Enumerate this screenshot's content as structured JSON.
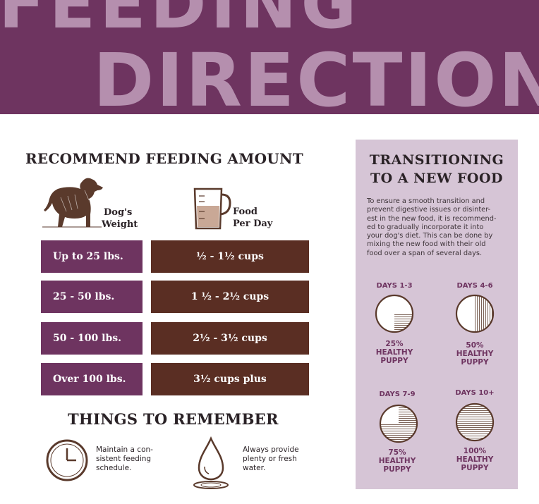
{
  "header": {
    "line1": "FEEDING",
    "line2": "DIRECTIONS"
  },
  "feeding": {
    "title": "RECOMMEND FEEDING AMOUNT",
    "weight_label_line1": "Dog's",
    "weight_label_line2": "Weight",
    "food_label_line1": "Food",
    "food_label_line2": "Per Day",
    "rows": [
      {
        "weight": "Up to 25 lbs.",
        "amount": "½ - 1½ cups"
      },
      {
        "weight": "25 - 50 lbs.",
        "amount": "1 ½ - 2½ cups"
      },
      {
        "weight": "50 - 100 lbs.",
        "amount": "2½ - 3½ cups"
      },
      {
        "weight": "Over 100 lbs.",
        "amount": "3½ cups plus"
      }
    ]
  },
  "remember": {
    "title": "THINGS TO REMEMBER",
    "tips": [
      {
        "icon": "clock-icon",
        "lines": [
          "Maintain a con-",
          "sistent feeding",
          "schedule."
        ]
      },
      {
        "icon": "water-drop-icon",
        "lines": [
          "Always provide",
          "plenty or fresh",
          "water."
        ]
      }
    ]
  },
  "transition": {
    "title_line1": "TRANSITIONING",
    "title_line2": "TO A NEW FOOD",
    "description_lines": [
      "To ensure a smooth transition and",
      "prevent digestive issues or disinter-",
      "est in the new food, it is recommend-",
      "ed to gradually incorporate it into",
      "your dog's diet. This can be done by",
      "mixing the new food with their old",
      "food over a span of several days."
    ],
    "stages": [
      {
        "days": "DAYS 1-3",
        "percent": "25%",
        "fill_fraction": 0.25,
        "label_line1": "HEALTHY",
        "label_line2": "PUPPY"
      },
      {
        "days": "DAYS 4-6",
        "percent": "50%",
        "fill_fraction": 0.5,
        "label_line1": "HEALTHY",
        "label_line2": "PUPPY"
      },
      {
        "days": "DAYS 7-9",
        "percent": "75%",
        "fill_fraction": 0.75,
        "label_line1": "HEALTHY",
        "label_line2": "PUPPY"
      },
      {
        "days": "DAYS 10+",
        "percent": "100%",
        "fill_fraction": 1.0,
        "label_line1": "HEALTHY",
        "label_line2": "PUPPY"
      }
    ]
  },
  "colors": {
    "purple": "#6e3460",
    "brown": "#5a2e23",
    "lavender": "#d6c5d6",
    "banner_text": "#b58fae"
  }
}
